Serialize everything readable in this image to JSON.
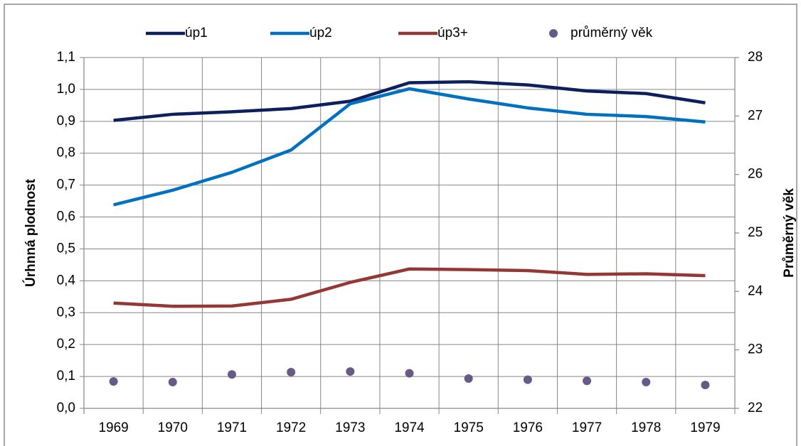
{
  "chart_data": {
    "type": "line",
    "categories": [
      "1969",
      "1970",
      "1971",
      "1972",
      "1973",
      "1974",
      "1975",
      "1976",
      "1977",
      "1978",
      "1979"
    ],
    "series": [
      {
        "name": "úp1",
        "color": "#0d1f5c",
        "values": [
          0.903,
          0.922,
          0.93,
          0.94,
          0.963,
          1.021,
          1.024,
          1.014,
          0.995,
          0.987,
          0.958
        ]
      },
      {
        "name": "úp2",
        "color": "#0070c0",
        "values": [
          0.638,
          0.684,
          0.74,
          0.81,
          0.955,
          1.002,
          0.97,
          0.942,
          0.922,
          0.915,
          0.898
        ]
      },
      {
        "name": "úp3+",
        "color": "#953735",
        "values": [
          0.33,
          0.32,
          0.321,
          0.342,
          0.395,
          0.437,
          0.435,
          0.432,
          0.42,
          0.422,
          0.416
        ]
      },
      {
        "name": "průměrný věk",
        "color": "#675a87",
        "axis": "y2",
        "marker": "dot",
        "values": [
          22.46,
          22.45,
          22.58,
          22.62,
          22.63,
          22.6,
          22.51,
          22.49,
          22.47,
          22.45,
          22.4
        ]
      }
    ],
    "ylabel": "Úrhnná plodnost",
    "y2label": "Průměrný věk",
    "ylim": [
      0,
      1.1
    ],
    "yticks": [
      {
        "value": 0,
        "label": "0,0"
      },
      {
        "value": 0.1,
        "label": "0,1"
      },
      {
        "value": 0.2,
        "label": "0,2"
      },
      {
        "value": 0.3,
        "label": "0,3"
      },
      {
        "value": 0.4,
        "label": "0,4"
      },
      {
        "value": 0.5,
        "label": "0,5"
      },
      {
        "value": 0.6,
        "label": "0,6"
      },
      {
        "value": 0.7,
        "label": "0,7"
      },
      {
        "value": 0.8,
        "label": "0,8"
      },
      {
        "value": 0.9,
        "label": "0,9"
      },
      {
        "value": 1.0,
        "label": "1,0"
      },
      {
        "value": 1.1,
        "label": "1,1"
      }
    ],
    "y2lim": [
      22,
      28
    ],
    "y2ticks": [
      22,
      23,
      24,
      25,
      26,
      27,
      28
    ],
    "grid": true,
    "legend": "top"
  }
}
